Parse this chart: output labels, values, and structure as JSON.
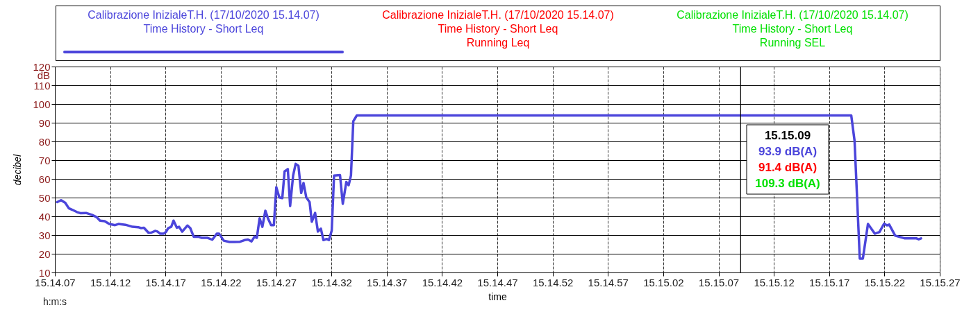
{
  "chart_data": {
    "type": "line",
    "xlabel": "time",
    "ylabel": "decibel",
    "xlim": [
      "2020-10-17T15:14:07",
      "2020-10-17T15:15:27"
    ],
    "ylim": [
      10,
      120
    ],
    "xticks": [
      {
        "value": "2020-10-17T15:14:07",
        "label": "15.14.07"
      },
      {
        "value": "2020-10-17T15:14:12",
        "label": "15.14.12"
      },
      {
        "value": "2020-10-17T15:14:17",
        "label": "15.14.17"
      },
      {
        "value": "2020-10-17T15:14:22",
        "label": "15.14.22"
      },
      {
        "value": "2020-10-17T15:14:27",
        "label": "15.14.27"
      },
      {
        "value": "2020-10-17T15:14:32",
        "label": "15.14.32"
      },
      {
        "value": "2020-10-17T15:14:37",
        "label": "15.14.37"
      },
      {
        "value": "2020-10-17T15:14:42",
        "label": "15.14.42"
      },
      {
        "value": "2020-10-17T15:14:47",
        "label": "15.14.47"
      },
      {
        "value": "2020-10-17T15:14:52",
        "label": "15.14.52"
      },
      {
        "value": "2020-10-17T15:14:57",
        "label": "15.14.57"
      },
      {
        "value": "2020-10-17T15:15:02",
        "label": "15.15.02"
      },
      {
        "value": "2020-10-17T15:15:07",
        "label": "15.15.07"
      },
      {
        "value": "2020-10-17T15:15:12",
        "label": "15.15.12"
      },
      {
        "value": "2020-10-17T15:15:17",
        "label": "15.15.17"
      },
      {
        "value": "2020-10-17T15:15:22",
        "label": "15.15.22"
      },
      {
        "value": "2020-10-17T15:15:27",
        "label": "15.15.27"
      }
    ],
    "yticks": [
      10,
      20,
      30,
      40,
      50,
      60,
      70,
      80,
      90,
      100,
      110,
      120
    ],
    "grid": true,
    "legend": "top",
    "ref_lines": [
      {
        "axis": "x",
        "value": "2020-10-17T15:15:09",
        "color": "#000000"
      }
    ],
    "annotations": [
      "15.15.09",
      "93.9 dB(A)",
      "91.4 dB(A)",
      "109.3 dB(A)",
      "dB",
      "h:m:s"
    ],
    "series": [
      {
        "name": "Calibrazione InizialeT.H. (17/10/2020 15.14.07)\nTime History - Short Leq",
        "color": "#4b45db",
        "x": [
          "2020-10-17T15:14:07.210",
          "2020-10-17T15:14:07.560",
          "2020-10-17T15:14:07.940",
          "2020-10-17T15:14:08.260",
          "2020-10-17T15:14:08.570",
          "2020-10-17T15:14:08.990",
          "2020-10-17T15:14:09.300",
          "2020-10-17T15:14:09.820",
          "2020-10-17T15:14:10.350",
          "2020-10-17T15:14:10.770",
          "2020-10-17T15:14:11.080",
          "2020-10-17T15:14:11.500",
          "2020-10-17T15:14:11.920",
          "2020-10-17T15:14:12.440",
          "2020-10-17T15:14:12.750",
          "2020-10-17T15:14:13.380",
          "2020-10-17T15:14:14.010",
          "2020-10-17T15:14:14.530",
          "2020-10-17T15:14:14.800",
          "2020-10-17T15:14:15.050",
          "2020-10-17T15:14:15.470",
          "2020-10-17T15:14:15.680",
          "2020-10-17T15:14:16.060",
          "2020-10-17T15:14:16.270",
          "2020-10-17T15:14:16.520",
          "2020-10-17T15:14:16.830",
          "2020-10-17T15:14:17.040",
          "2020-10-17T15:14:17.250",
          "2020-10-17T15:14:17.520",
          "2020-10-17T15:14:17.730",
          "2020-10-17T15:14:18.030",
          "2020-10-17T15:14:18.230",
          "2020-10-17T15:14:18.510",
          "2020-10-17T15:14:18.990",
          "2020-10-17T15:14:19.240",
          "2020-10-17T15:14:19.550",
          "2020-10-17T15:14:19.970",
          "2020-10-17T15:14:20.280",
          "2020-10-17T15:14:20.810",
          "2020-10-17T15:14:21.230",
          "2020-10-17T15:14:21.640",
          "2020-10-17T15:14:21.850",
          "2020-10-17T15:14:22.270",
          "2020-10-17T15:14:22.790",
          "2020-10-17T15:14:23.210",
          "2020-10-17T15:14:23.740",
          "2020-10-17T15:14:24.150",
          "2020-10-17T15:14:24.460",
          "2020-10-17T15:14:24.780",
          "2020-10-17T15:14:25.050",
          "2020-10-17T15:14:25.260",
          "2020-10-17T15:14:25.510",
          "2020-10-17T15:14:25.760",
          "2020-10-17T15:14:26.030",
          "2020-10-17T15:14:26.300",
          "2020-10-17T15:14:26.550",
          "2020-10-17T15:14:26.800",
          "2020-10-17T15:14:27.020",
          "2020-10-17T15:14:27.290",
          "2020-10-17T15:14:27.560",
          "2020-10-17T15:14:27.770",
          "2020-10-17T15:14:28.060",
          "2020-10-17T15:14:28.270",
          "2020-10-17T15:14:28.540",
          "2020-10-17T15:14:28.770",
          "2020-10-17T15:14:29.020",
          "2020-10-17T15:14:29.270",
          "2020-10-17T15:14:29.480",
          "2020-10-17T15:14:29.730",
          "2020-10-17T15:14:30.030",
          "2020-10-17T15:14:30.230",
          "2020-10-17T15:14:30.530",
          "2020-10-17T15:14:30.780",
          "2020-10-17T15:14:31.050",
          "2020-10-17T15:14:31.280",
          "2020-10-17T15:14:31.570",
          "2020-10-17T15:14:31.780",
          "2020-10-17T15:14:32.030",
          "2020-10-17T15:14:32.240",
          "2020-10-17T15:14:32.780",
          "2020-10-17T15:14:33.030",
          "2020-10-17T15:14:33.350",
          "2020-10-17T15:14:33.560",
          "2020-10-17T15:14:33.770",
          "2020-10-17T15:14:33.980",
          "2020-10-17T15:14:34.300",
          "2020-10-17T15:15:19.000",
          "2020-10-17T15:15:19.300",
          "2020-10-17T15:15:19.770",
          "2020-10-17T15:15:20.050",
          "2020-10-17T15:15:20.510",
          "2020-10-17T15:15:21.130",
          "2020-10-17T15:15:21.550",
          "2020-10-17T15:15:21.970",
          "2020-10-17T15:15:22.220",
          "2020-10-17T15:15:22.430",
          "2020-10-17T15:15:22.970",
          "2020-10-17T15:15:23.850",
          "2020-10-17T15:15:24.900",
          "2020-10-17T15:15:25.100",
          "2020-10-17T15:15:25.310"
        ],
        "values": [
          47.6,
          48.6,
          47.2,
          44.3,
          43.5,
          42.3,
          41.7,
          41.8,
          40.8,
          39.6,
          37.7,
          37.4,
          35.9,
          35.3,
          35.9,
          35.5,
          34.4,
          34.2,
          33.7,
          33.9,
          31.2,
          31.2,
          32.2,
          31.9,
          30.7,
          30.7,
          31.6,
          33.7,
          34.4,
          37.7,
          33.9,
          34.4,
          31.8,
          35.1,
          33.7,
          29.1,
          29.1,
          28.5,
          28.5,
          27.5,
          30.7,
          30.7,
          27.0,
          26.3,
          26.3,
          26.4,
          27.3,
          27.6,
          26.6,
          29.1,
          28.5,
          39.0,
          34.4,
          43.0,
          38.4,
          35.3,
          35.3,
          55.6,
          50.1,
          49.7,
          64.0,
          65.2,
          45.5,
          61.8,
          68.0,
          67.0,
          52.5,
          57.8,
          50.1,
          47.6,
          37.1,
          41.8,
          31.9,
          33.4,
          27.3,
          27.9,
          27.3,
          32.4,
          61.8,
          62.0,
          46.7,
          58.3,
          56.6,
          61.8,
          90.8,
          93.9,
          93.9,
          80.3,
          17.4,
          17.4,
          35.9,
          30.7,
          31.6,
          36.1,
          35.2,
          35.6,
          29.7,
          28.2,
          28.2,
          27.7,
          28.2
        ]
      },
      {
        "name": "Calibrazione InizialeT.H. (17/10/2020 15.14.07)\nTime History - Short Leq\nRunning Leq",
        "color": "#ff0000"
      },
      {
        "name": "Calibrazione InizialeT.H. (17/10/2020 15.14.07)\nTime History - Short Leq\nRunning SEL",
        "color": "#00e000"
      }
    ]
  }
}
